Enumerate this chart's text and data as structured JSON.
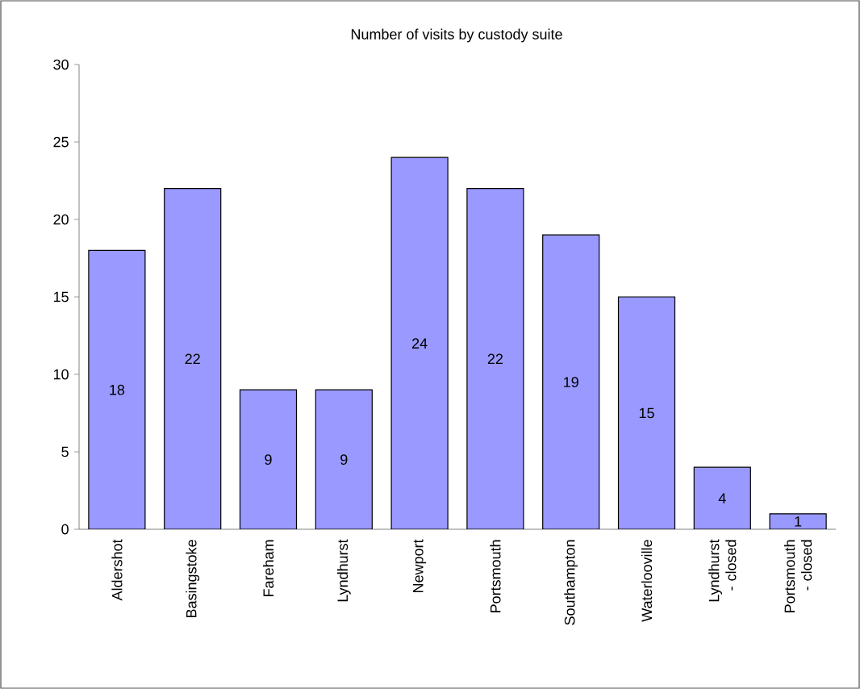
{
  "chart_data": {
    "type": "bar",
    "title": "Number of visits by custody suite",
    "categories": [
      "Aldershot",
      "Basingstoke",
      "Fareham",
      "Lyndhurst",
      "Newport",
      "Portsmouth",
      "Southampton",
      "Waterlooville",
      "Lyndhurst - closed",
      "Portsmouth - closed"
    ],
    "values": [
      18,
      22,
      9,
      9,
      24,
      22,
      19,
      15,
      4,
      1
    ],
    "color": "#9999ff",
    "ylim": [
      0,
      30
    ],
    "yticks": [
      0,
      5,
      10,
      15,
      20,
      25,
      30
    ],
    "data_labels": true
  }
}
